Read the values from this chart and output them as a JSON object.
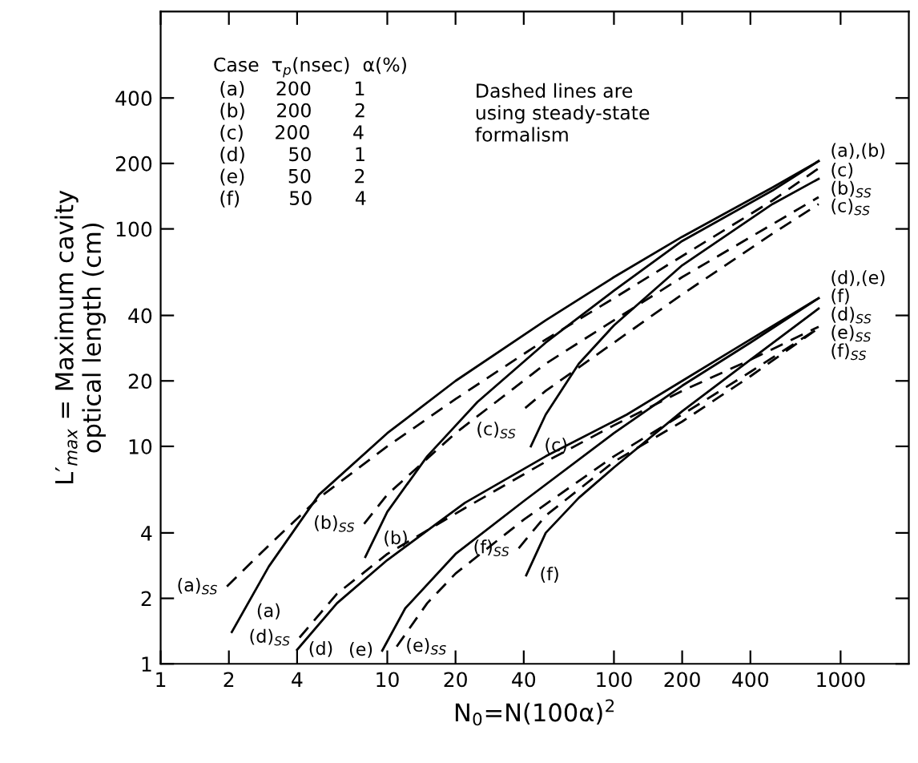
{
  "chart_data": {
    "type": "line",
    "xlabel": "N$_{0}$=N(100α)$^{2}$",
    "ylabel": "L′$_{max}$ = Maximum cavity\noptical length (cm)",
    "log": "xy",
    "grid": false,
    "legend": false,
    "xlim": [
      1,
      2000
    ],
    "ylim": [
      1,
      1000
    ],
    "xticks": [
      1,
      2,
      4,
      10,
      20,
      40,
      100,
      200,
      400,
      1000
    ],
    "yticks": [
      1,
      2,
      4,
      10,
      20,
      40,
      100,
      200,
      400
    ],
    "series": [
      {
        "name": "(a)",
        "color": "#000000",
        "line_style": "solid",
        "x": [
          2.06,
          3,
          5,
          10,
          20,
          50,
          100,
          200,
          500,
          800
        ],
        "values": [
          1.4,
          2.8,
          6.0,
          11.5,
          20,
          38,
          60,
          92,
          155,
          205
        ]
      },
      {
        "name": "(b)",
        "color": "#000000",
        "line_style": "solid",
        "x": [
          8,
          10,
          15,
          25,
          50,
          100,
          200,
          500,
          800
        ],
        "values": [
          3.1,
          5,
          9,
          16,
          30,
          52,
          88,
          150,
          205
        ]
      },
      {
        "name": "(c)",
        "color": "#000000",
        "line_style": "solid",
        "x": [
          43,
          50,
          70,
          100,
          200,
          500,
          800
        ],
        "values": [
          10,
          14,
          24,
          36,
          68,
          130,
          170
        ]
      },
      {
        "name": "(a)$_{SS}$",
        "color": "#000000",
        "line_style": "dashed",
        "x": [
          1.96,
          3,
          5,
          10,
          20,
          50,
          100,
          200,
          500,
          800
        ],
        "values": [
          2.27,
          3.5,
          5.8,
          10,
          16.5,
          31,
          48,
          75,
          135,
          190
        ]
      },
      {
        "name": "(b)$_{SS}$",
        "color": "#000000",
        "line_style": "dashed",
        "x": [
          7.9,
          10,
          20,
          50,
          100,
          200,
          500,
          800
        ],
        "values": [
          4.4,
          6,
          11.5,
          24,
          38,
          60,
          105,
          140
        ]
      },
      {
        "name": "(c)$_{SS}$",
        "color": "#000000",
        "line_style": "dashed",
        "x": [
          40.6,
          50,
          100,
          200,
          500,
          800
        ],
        "values": [
          15,
          18,
          30,
          50,
          95,
          130
        ]
      },
      {
        "name": "(d)",
        "color": "#000000",
        "line_style": "solid",
        "x": [
          4,
          6,
          10,
          22,
          50,
          114,
          200,
          340,
          800
        ],
        "values": [
          1.16,
          1.9,
          3.0,
          5.5,
          9,
          14,
          20,
          28,
          48
        ]
      },
      {
        "name": "(e)",
        "color": "#000000",
        "line_style": "solid",
        "x": [
          9.5,
          12,
          20,
          40,
          100,
          200,
          400,
          800
        ],
        "values": [
          1.15,
          1.8,
          3.2,
          5.6,
          11.5,
          19,
          30,
          48
        ]
      },
      {
        "name": "(f)",
        "color": "#000000",
        "line_style": "solid",
        "x": [
          41,
          50,
          70,
          100,
          200,
          400,
          800
        ],
        "values": [
          2.55,
          4,
          5.8,
          8,
          14.5,
          25,
          43
        ]
      },
      {
        "name": "(d)$_{SS}$",
        "color": "#000000",
        "line_style": "dashed",
        "x": [
          4.1,
          6,
          10,
          22,
          50,
          100,
          200,
          400,
          800
        ],
        "values": [
          1.32,
          2.1,
          3.2,
          5.2,
          8.5,
          12.5,
          18,
          25,
          35.5
        ]
      },
      {
        "name": "(e)$_{SS}$",
        "color": "#000000",
        "line_style": "dashed",
        "x": [
          11,
          15,
          20,
          40,
          100,
          200,
          400,
          800
        ],
        "values": [
          1.2,
          1.9,
          2.6,
          4.6,
          9,
          14,
          22,
          35
        ]
      },
      {
        "name": "(f)$_{SS}$",
        "color": "#000000",
        "line_style": "dashed",
        "x": [
          38,
          50,
          100,
          200,
          400,
          800
        ],
        "values": [
          3.4,
          4.8,
          8.5,
          13,
          21,
          35
        ]
      }
    ],
    "annotations": [
      "Case  τ$_{p}$(nsec)  α(%)\n (a)     200       1\n (b)     200       2\n (c)     200       4\n (d)       50       1\n (e)       50       2\n (f)        50       4",
      "Dashed lines are\nusing steady-state\nformalism",
      "(a),(b)",
      "(c)",
      "(b)$_{SS}$",
      "(c)$_{SS}$",
      "(d),(e)",
      "(f)",
      "(d)$_{SS}$",
      "(e)$_{SS}$",
      "(f)$_{SS}$"
    ]
  }
}
